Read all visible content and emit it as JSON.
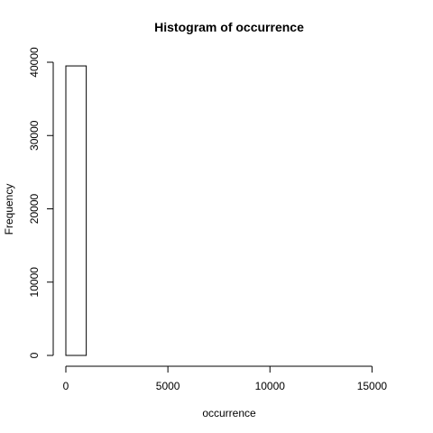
{
  "chart_data": {
    "type": "bar",
    "title": "Histogram of occurrence",
    "xlabel": "occurrence",
    "ylabel": "Frequency",
    "bin_width": 1000,
    "bins": [
      {
        "from": 0,
        "to": 1000,
        "count": 39500
      },
      {
        "from": 1000,
        "to": 2000,
        "count": 0
      },
      {
        "from": 2000,
        "to": 3000,
        "count": 0
      },
      {
        "from": 3000,
        "to": 4000,
        "count": 0
      },
      {
        "from": 4000,
        "to": 5000,
        "count": 0
      },
      {
        "from": 5000,
        "to": 6000,
        "count": 0
      },
      {
        "from": 6000,
        "to": 7000,
        "count": 0
      },
      {
        "from": 7000,
        "to": 8000,
        "count": 0
      },
      {
        "from": 8000,
        "to": 9000,
        "count": 0
      },
      {
        "from": 9000,
        "to": 10000,
        "count": 0
      },
      {
        "from": 10000,
        "to": 11000,
        "count": 0
      },
      {
        "from": 11000,
        "to": 12000,
        "count": 0
      },
      {
        "from": 12000,
        "to": 13000,
        "count": 0
      },
      {
        "from": 13000,
        "to": 14000,
        "count": 0
      },
      {
        "from": 14000,
        "to": 15000,
        "count": 0
      },
      {
        "from": 15000,
        "to": 16000,
        "count": 0
      }
    ],
    "x_ticks": [
      0,
      5000,
      10000,
      15000
    ],
    "x_tick_labels": [
      "0",
      "5000",
      "10000",
      "15000"
    ],
    "y_ticks": [
      0,
      10000,
      20000,
      30000,
      40000
    ],
    "y_tick_labels": [
      "0",
      "10000",
      "20000",
      "30000",
      "40000"
    ],
    "xlim": [
      0,
      16000
    ],
    "ylim": [
      0,
      40000
    ],
    "grid": false,
    "legend": "none"
  }
}
